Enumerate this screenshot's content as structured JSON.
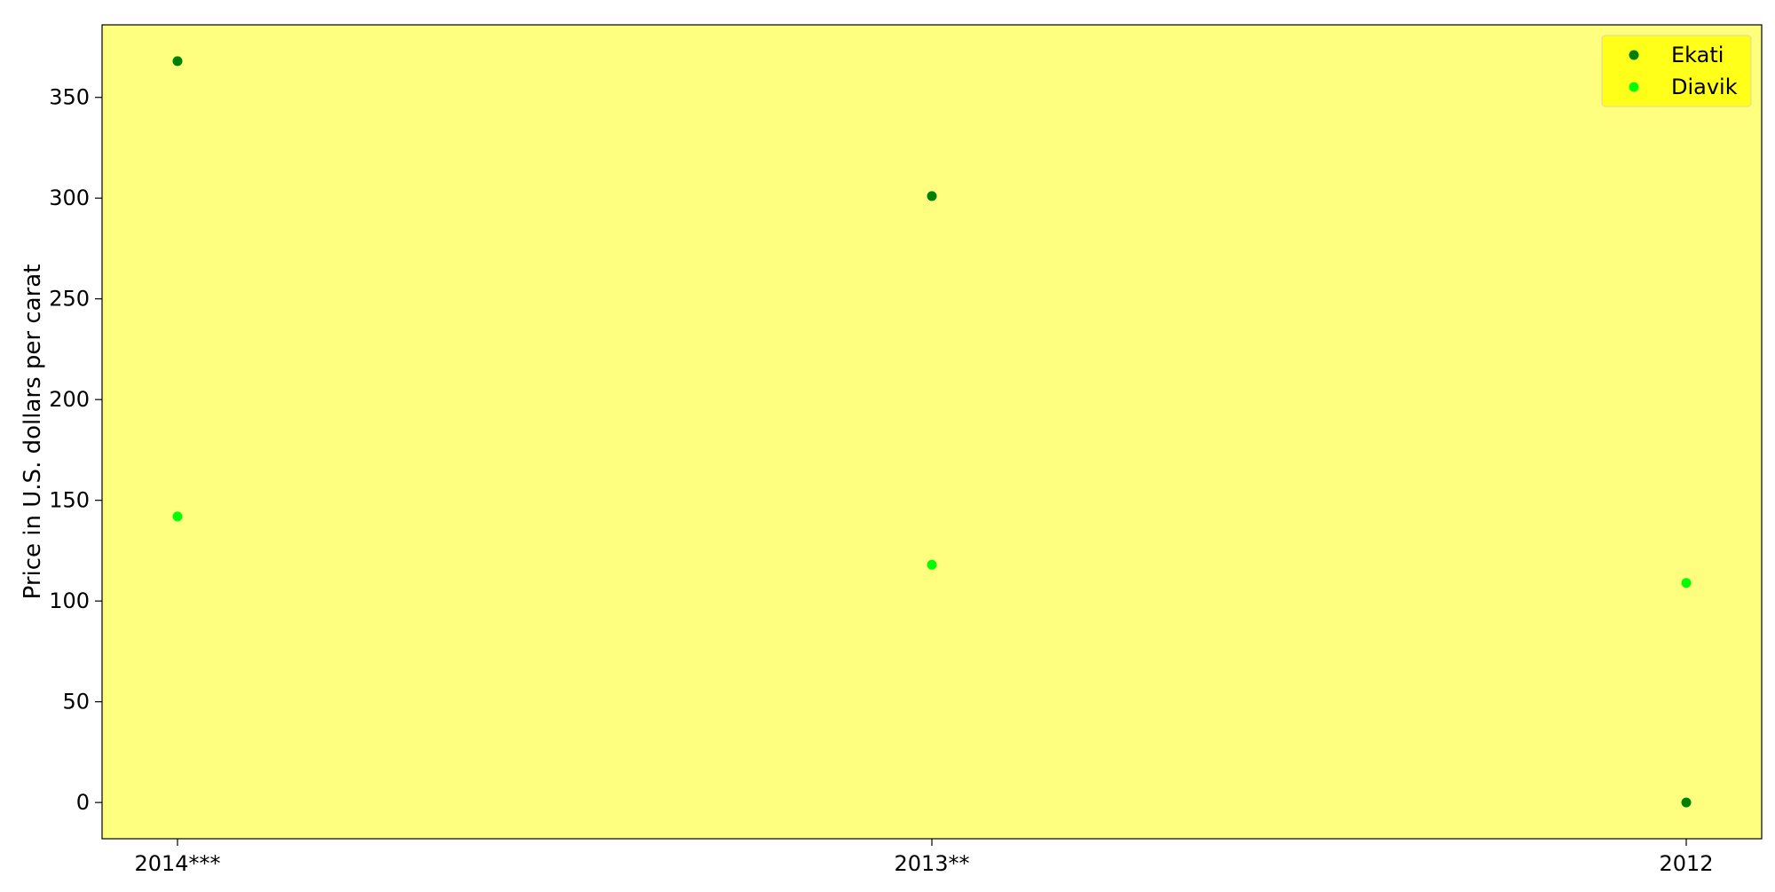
{
  "chart_data": {
    "type": "scatter",
    "title": "",
    "xlabel": "",
    "ylabel": "Price in U.S. dollars per carat",
    "categories": [
      "2014***",
      "2013**",
      "2012"
    ],
    "series": [
      {
        "name": "Ekati",
        "values": [
          368,
          301,
          0
        ],
        "color": "#008000"
      },
      {
        "name": "Diavik",
        "values": [
          142,
          118,
          109
        ],
        "color": "#00ff00"
      }
    ],
    "ylim": [
      -18,
      386
    ],
    "yticks": [
      0,
      50,
      100,
      150,
      200,
      250,
      300,
      350
    ],
    "grid": false,
    "legend_position": "top-right",
    "plot_background": "#ffff7f",
    "legend_background": "#ffff19"
  }
}
